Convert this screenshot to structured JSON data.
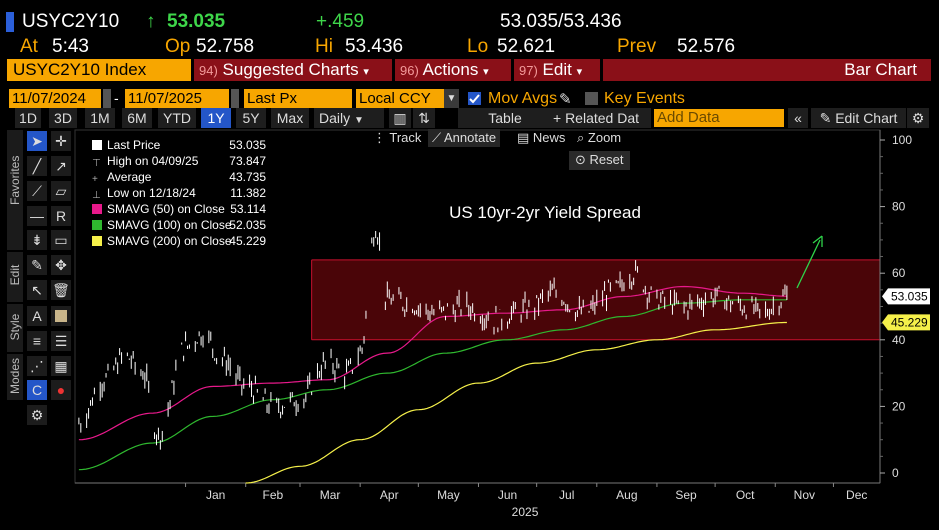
{
  "quote": {
    "ticker": "USYC2Y10",
    "arrow": "↑",
    "last": "53.035",
    "change": "+.459",
    "bid_ask": "53.035/53.436",
    "at_label": "At",
    "at_value": "5:43",
    "open_label": "Op",
    "open_value": "52.758",
    "high_label": "Hi",
    "high_value": "53.436",
    "low_label": "Lo",
    "low_value": "52.621",
    "prev_label": "Prev",
    "prev_value": "52.576"
  },
  "command_bar": {
    "security": "USYC2Y10 Index",
    "suggested_num": "94)",
    "suggested_label": "Suggested Charts",
    "actions_num": "96)",
    "actions_label": "Actions",
    "edit_num": "97)",
    "edit_label": "Edit",
    "function_title": "Bar Chart"
  },
  "options_bar": {
    "start_date": "11/07/2024",
    "end_date": "11/07/2025",
    "price_field": "Last Px",
    "currency": "Local CCY",
    "mov_avgs_label": "Mov Avgs",
    "key_events_label": "Key Events"
  },
  "toolbar": {
    "ranges": [
      "1D",
      "3D",
      "1M",
      "6M",
      "YTD",
      "1Y",
      "5Y",
      "Max"
    ],
    "active_range": "1Y",
    "frequency": "Daily",
    "table_label": "Table",
    "related_label": "+ Related Dat",
    "add_data_placeholder": "Add Data",
    "edit_chart_label": "Edit Chart"
  },
  "side_tabs": {
    "favorites": "Favorites",
    "edit": "Edit",
    "style": "Style",
    "modes": "Modes"
  },
  "chart_controls": {
    "track": "Track",
    "annotate": "Annotate",
    "news": "News",
    "zoom": "Zoom",
    "reset": "Reset"
  },
  "legend": [
    {
      "label": "Last Price",
      "value": "53.035",
      "color": "#ffffff"
    },
    {
      "label": "High on 04/09/25",
      "value": "73.847",
      "color": ""
    },
    {
      "label": "Average",
      "value": "43.735",
      "color": ""
    },
    {
      "label": "Low on 12/18/24",
      "value": "11.382",
      "color": ""
    },
    {
      "label": "SMAVG (50)  on Close",
      "value": "53.114",
      "color": "#e8198b"
    },
    {
      "label": "SMAVG (100)  on Close",
      "value": "52.035",
      "color": "#2fb82f"
    },
    {
      "label": "SMAVG (200)  on Close",
      "value": "45.229",
      "color": "#f5f04a"
    }
  ],
  "chart_data": {
    "type": "line",
    "annotation": "US 10yr-2yr Yield Spread",
    "x_ticks": [
      "Jan",
      "Feb",
      "Mar",
      "Apr",
      "May",
      "Jun",
      "Jul",
      "Aug",
      "Sep",
      "Oct",
      "Nov",
      "Dec"
    ],
    "x_year": "2025",
    "y_ticks": [
      0,
      20,
      40,
      60,
      80,
      100
    ],
    "ylim": [
      -3,
      103
    ],
    "last_tag": "53.035",
    "sma200_tag": "45.229",
    "range_band": [
      40,
      64
    ],
    "series": [
      {
        "name": "Last Price",
        "color": "#ffffff",
        "x": [
          "2024-11-07",
          "2024-11-20",
          "2024-12-01",
          "2024-12-10",
          "2024-12-18",
          "2025-01-01",
          "2025-01-10",
          "2025-01-20",
          "2025-02-01",
          "2025-02-15",
          "2025-03-01",
          "2025-03-15",
          "2025-03-25",
          "2025-04-01",
          "2025-04-09",
          "2025-04-15",
          "2025-04-25",
          "2025-05-10",
          "2025-05-25",
          "2025-06-10",
          "2025-06-25",
          "2025-07-10",
          "2025-07-25",
          "2025-08-10",
          "2025-08-20",
          "2025-09-01",
          "2025-09-15",
          "2025-10-01",
          "2025-10-15",
          "2025-10-25",
          "2025-11-07"
        ],
        "values": [
          15,
          28,
          35,
          30,
          11.4,
          38,
          42,
          34,
          26,
          20,
          22,
          33,
          30,
          36,
          73.8,
          52,
          51,
          48,
          50,
          46,
          49,
          54,
          48,
          55,
          60,
          52,
          50,
          53,
          50,
          48,
          53.0
        ]
      },
      {
        "name": "SMAVG (50)",
        "color": "#e8198b",
        "x": [
          "2024-11-07",
          "2024-12-15",
          "2025-01-15",
          "2025-02-15",
          "2025-03-15",
          "2025-04-15",
          "2025-05-15",
          "2025-06-15",
          "2025-07-15",
          "2025-08-15",
          "2025-09-15",
          "2025-10-15",
          "2025-11-07"
        ],
        "values": [
          10,
          18,
          26,
          27,
          28,
          36,
          47,
          48,
          49,
          53,
          56,
          54,
          53.1
        ]
      },
      {
        "name": "SMAVG (100)",
        "color": "#2fb82f",
        "x": [
          "2024-11-07",
          "2024-12-15",
          "2025-01-15",
          "2025-02-15",
          "2025-03-15",
          "2025-04-15",
          "2025-05-15",
          "2025-06-15",
          "2025-07-15",
          "2025-08-15",
          "2025-09-15",
          "2025-10-15",
          "2025-11-07"
        ],
        "values": [
          1,
          9,
          17,
          22,
          25,
          30,
          36,
          40,
          43,
          47,
          51,
          52,
          52.0
        ]
      },
      {
        "name": "SMAVG (200)",
        "color": "#f5f04a",
        "x": [
          "2025-02-01",
          "2025-03-01",
          "2025-04-01",
          "2025-05-01",
          "2025-06-01",
          "2025-07-01",
          "2025-08-01",
          "2025-09-01",
          "2025-10-01",
          "2025-11-07"
        ],
        "values": [
          -3,
          2,
          10,
          19,
          27,
          33,
          37,
          40,
          43,
          45.2
        ]
      }
    ]
  }
}
